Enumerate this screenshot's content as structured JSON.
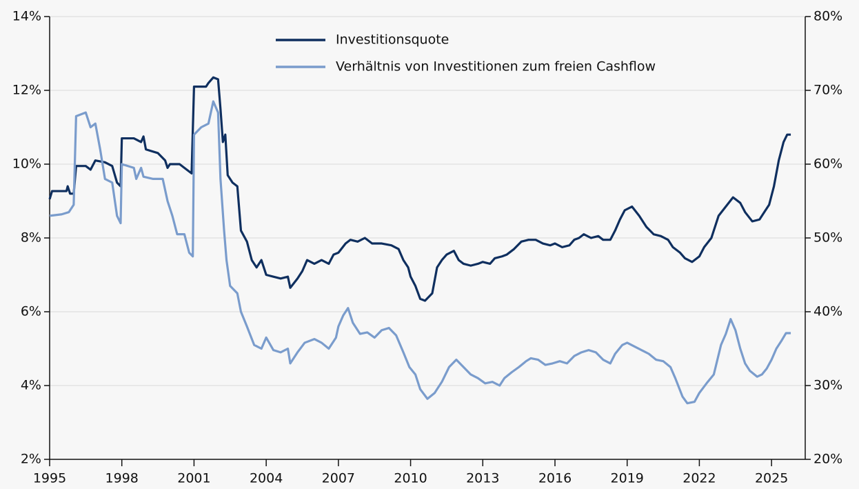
{
  "chart_data": {
    "type": "line",
    "x": [],
    "xlim": [
      1995,
      2026.4
    ],
    "xticks": [
      1995,
      1998,
      2001,
      2004,
      2007,
      2010,
      2013,
      2016,
      2019,
      2022,
      2025
    ],
    "ylim": [
      2,
      14
    ],
    "yticks": [
      {
        "value": 2,
        "label": "2%"
      },
      {
        "value": 4,
        "label": "4%"
      },
      {
        "value": 6,
        "label": "6%"
      },
      {
        "value": 8,
        "label": "8%"
      },
      {
        "value": 10,
        "label": "10%"
      },
      {
        "value": 12,
        "label": "12%"
      },
      {
        "value": 14,
        "label": "14%"
      }
    ],
    "y2lim": [
      20,
      80
    ],
    "y2ticks": [
      {
        "value": 20,
        "label": "20%"
      },
      {
        "value": 30,
        "label": "30%"
      },
      {
        "value": 40,
        "label": "40%"
      },
      {
        "value": 50,
        "label": "50%"
      },
      {
        "value": 60,
        "label": "60%"
      },
      {
        "value": 70,
        "label": "70%"
      },
      {
        "value": 80,
        "label": "80%"
      }
    ],
    "grid": true,
    "legend": "top",
    "series": [
      {
        "name": "Investitionsquote",
        "color": "#0f2f5f",
        "axis": "y",
        "x": [
          1995.0,
          1995.1,
          1995.7,
          1995.75,
          1995.85,
          1996.0,
          1996.1,
          1996.5,
          1996.7,
          1996.9,
          1997.3,
          1997.6,
          1997.8,
          1997.95,
          1998.0,
          1998.5,
          1998.8,
          1998.9,
          1999.0,
          1999.5,
          1999.8,
          1999.9,
          2000.0,
          2000.4,
          2000.6,
          2000.9,
          2001.0,
          2001.5,
          2001.6,
          2001.8,
          2002.0,
          2002.1,
          2002.2,
          2002.3,
          2002.4,
          2002.6,
          2002.8,
          2002.95,
          2003.2,
          2003.4,
          2003.6,
          2003.8,
          2004.0,
          2004.3,
          2004.6,
          2004.9,
          2005.0,
          2005.3,
          2005.5,
          2005.7,
          2006.0,
          2006.3,
          2006.6,
          2006.8,
          2007.0,
          2007.3,
          2007.5,
          2007.8,
          2008.1,
          2008.4,
          2008.8,
          2009.2,
          2009.5,
          2009.7,
          2009.9,
          2010.0,
          2010.2,
          2010.4,
          2010.6,
          2010.9,
          2011.1,
          2011.3,
          2011.5,
          2011.8,
          2012.0,
          2012.2,
          2012.5,
          2012.8,
          2013.0,
          2013.3,
          2013.5,
          2013.8,
          2014.0,
          2014.3,
          2014.6,
          2014.9,
          2015.2,
          2015.5,
          2015.8,
          2016.0,
          2016.3,
          2016.6,
          2016.8,
          2017.0,
          2017.2,
          2017.5,
          2017.8,
          2018.0,
          2018.3,
          2018.5,
          2018.7,
          2018.9,
          2019.2,
          2019.5,
          2019.8,
          2020.1,
          2020.4,
          2020.7,
          2020.9,
          2021.2,
          2021.4,
          2021.7,
          2022.0,
          2022.2,
          2022.5,
          2022.8,
          2023.1,
          2023.4,
          2023.7,
          2023.9,
          2024.2,
          2024.5,
          2024.7,
          2024.9,
          2025.1,
          2025.3,
          2025.5,
          2025.65,
          2025.8
        ],
        "values": [
          9.05,
          9.27,
          9.27,
          9.4,
          9.2,
          9.2,
          9.95,
          9.95,
          9.85,
          10.1,
          10.05,
          9.95,
          9.5,
          9.4,
          10.7,
          10.7,
          10.6,
          10.75,
          10.4,
          10.3,
          10.1,
          9.9,
          10.0,
          10.0,
          9.9,
          9.75,
          12.1,
          12.1,
          12.2,
          12.35,
          12.3,
          11.5,
          10.6,
          10.8,
          9.7,
          9.5,
          9.4,
          8.2,
          7.9,
          7.4,
          7.2,
          7.4,
          7.0,
          6.95,
          6.9,
          6.95,
          6.65,
          6.9,
          7.1,
          7.4,
          7.3,
          7.4,
          7.3,
          7.55,
          7.6,
          7.85,
          7.95,
          7.9,
          8.0,
          7.85,
          7.85,
          7.8,
          7.7,
          7.4,
          7.2,
          6.95,
          6.7,
          6.35,
          6.3,
          6.5,
          7.2,
          7.4,
          7.55,
          7.65,
          7.4,
          7.3,
          7.25,
          7.3,
          7.35,
          7.3,
          7.45,
          7.5,
          7.55,
          7.7,
          7.9,
          7.95,
          7.95,
          7.85,
          7.8,
          7.85,
          7.75,
          7.8,
          7.95,
          8.0,
          8.1,
          8.0,
          8.05,
          7.95,
          7.95,
          8.2,
          8.5,
          8.75,
          8.85,
          8.6,
          8.3,
          8.1,
          8.05,
          7.95,
          7.75,
          7.6,
          7.45,
          7.35,
          7.5,
          7.75,
          8.0,
          8.6,
          8.85,
          9.1,
          8.95,
          8.7,
          8.45,
          8.5,
          8.7,
          8.9,
          9.4,
          10.1,
          10.6,
          10.8,
          10.8
        ]
      },
      {
        "name": "Verhältnis von Investitionen zum freien Cashflow",
        "color": "#7a9ccc",
        "axis": "y2",
        "x": [
          1995.0,
          1995.5,
          1995.8,
          1996.0,
          1996.1,
          1996.5,
          1996.7,
          1996.9,
          1997.1,
          1997.3,
          1997.6,
          1997.8,
          1997.95,
          1998.0,
          1998.5,
          1998.6,
          1998.8,
          1998.9,
          1999.3,
          1999.7,
          1999.9,
          2000.1,
          2000.3,
          2000.6,
          2000.8,
          2000.95,
          2001.0,
          2001.3,
          2001.6,
          2001.8,
          2002.0,
          2002.1,
          2002.25,
          2002.35,
          2002.5,
          2002.8,
          2002.95,
          2003.2,
          2003.5,
          2003.8,
          2004.0,
          2004.3,
          2004.6,
          2004.9,
          2005.0,
          2005.3,
          2005.6,
          2006.0,
          2006.3,
          2006.6,
          2006.9,
          2007.0,
          2007.2,
          2007.4,
          2007.6,
          2007.9,
          2008.2,
          2008.5,
          2008.8,
          2009.1,
          2009.4,
          2009.7,
          2009.95,
          2010.2,
          2010.4,
          2010.7,
          2011.0,
          2011.3,
          2011.6,
          2011.9,
          2012.2,
          2012.5,
          2012.8,
          2013.1,
          2013.4,
          2013.7,
          2013.9,
          2014.2,
          2014.5,
          2014.8,
          2015.0,
          2015.3,
          2015.6,
          2015.9,
          2016.2,
          2016.5,
          2016.8,
          2017.1,
          2017.4,
          2017.7,
          2018.0,
          2018.3,
          2018.5,
          2018.8,
          2019.0,
          2019.3,
          2019.6,
          2019.9,
          2020.2,
          2020.5,
          2020.8,
          2021.0,
          2021.3,
          2021.5,
          2021.8,
          2022.0,
          2022.3,
          2022.6,
          2022.9,
          2023.1,
          2023.3,
          2023.5,
          2023.7,
          2023.9,
          2024.1,
          2024.4,
          2024.6,
          2024.8,
          2025.0,
          2025.2,
          2025.4,
          2025.6,
          2025.8
        ],
        "values": [
          53.0,
          53.2,
          53.5,
          54.5,
          66.5,
          67.0,
          65.0,
          65.5,
          62.0,
          58.0,
          57.5,
          53.0,
          52.0,
          60.0,
          59.5,
          58.0,
          59.5,
          58.3,
          58.0,
          58.0,
          55.0,
          53.0,
          50.5,
          50.5,
          48.0,
          47.5,
          64.0,
          65.0,
          65.5,
          68.5,
          67.0,
          58.0,
          51.0,
          47.0,
          43.5,
          42.5,
          40.0,
          38.0,
          35.5,
          35.0,
          36.5,
          34.8,
          34.5,
          35.0,
          33.0,
          34.5,
          35.8,
          36.3,
          35.8,
          35.0,
          36.5,
          38.0,
          39.5,
          40.5,
          38.5,
          37.0,
          37.2,
          36.5,
          37.5,
          37.8,
          36.8,
          34.5,
          32.5,
          31.5,
          29.5,
          28.2,
          29.0,
          30.5,
          32.5,
          33.5,
          32.5,
          31.5,
          31.0,
          30.3,
          30.5,
          30.0,
          31.0,
          31.8,
          32.5,
          33.3,
          33.7,
          33.5,
          32.8,
          33.0,
          33.3,
          33.0,
          34.0,
          34.5,
          34.8,
          34.5,
          33.5,
          33.0,
          34.3,
          35.5,
          35.8,
          35.3,
          34.8,
          34.3,
          33.5,
          33.3,
          32.5,
          31.0,
          28.5,
          27.6,
          27.8,
          29.0,
          30.3,
          31.5,
          35.5,
          37.0,
          39.0,
          37.5,
          35.0,
          33.0,
          32.0,
          31.2,
          31.5,
          32.3,
          33.5,
          35.0,
          36.0,
          37.1,
          37.1
        ]
      }
    ]
  }
}
